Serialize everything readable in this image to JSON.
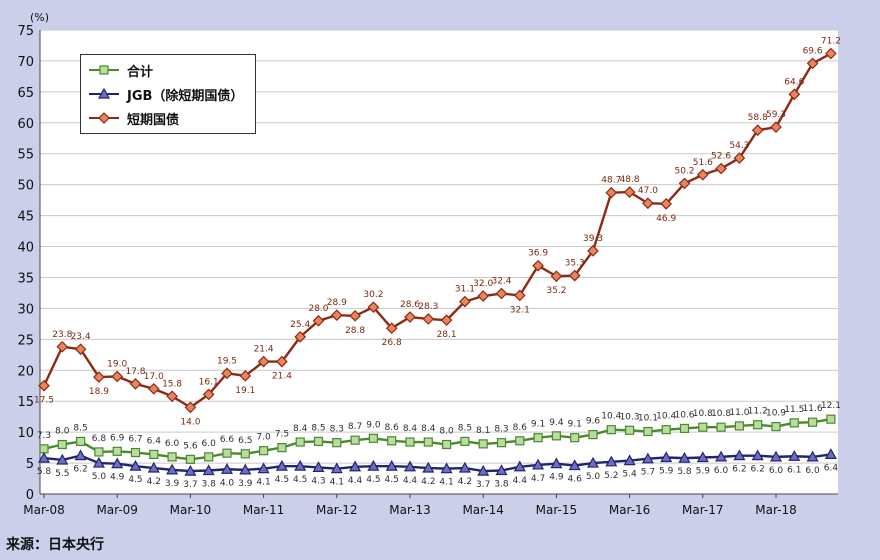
{
  "chart_data": {
    "type": "line",
    "y_unit_label": "(%)",
    "ylim": [
      0,
      75
    ],
    "y_ticks": [
      0,
      5,
      10,
      15,
      20,
      25,
      30,
      35,
      40,
      45,
      50,
      55,
      60,
      65,
      70,
      75
    ],
    "x_tick_labels": [
      "Mar-08",
      "Mar-09",
      "Mar-10",
      "Mar-11",
      "Mar-12",
      "Mar-13",
      "Mar-14",
      "Mar-15",
      "Mar-16",
      "Mar-17",
      "Mar-18"
    ],
    "points_per_year": 4,
    "legend_position": "top-left",
    "series": [
      {
        "name": "合计",
        "color": "#4a8a2a",
        "marker_fill": "#b9dca0",
        "marker": "square",
        "values": [
          7.3,
          8.0,
          8.5,
          6.8,
          6.9,
          6.7,
          6.4,
          6.0,
          5.6,
          6.0,
          6.6,
          6.5,
          7.0,
          7.5,
          8.4,
          8.5,
          8.3,
          8.7,
          9.0,
          8.6,
          8.4,
          8.4,
          8.0,
          8.5,
          8.1,
          8.3,
          8.6,
          9.1,
          9.4,
          9.1,
          9.6,
          10.4,
          10.3,
          10.1,
          10.4,
          10.6,
          10.8,
          10.8,
          11.0,
          11.2,
          10.9,
          11.5,
          11.6,
          12.1
        ]
      },
      {
        "name": "JGB（除短期国债）",
        "color": "#24246e",
        "marker_fill": "#6a6fc4",
        "marker": "triangle",
        "values": [
          5.8,
          5.5,
          6.2,
          5.0,
          4.9,
          4.5,
          4.2,
          3.9,
          3.7,
          3.8,
          4.0,
          3.9,
          4.1,
          4.5,
          4.5,
          4.3,
          4.1,
          4.4,
          4.5,
          4.5,
          4.4,
          4.2,
          4.1,
          4.2,
          3.7,
          3.8,
          4.4,
          4.7,
          4.9,
          4.6,
          5.0,
          5.2,
          5.4,
          5.7,
          5.9,
          5.8,
          5.9,
          6.0,
          6.2,
          6.2,
          6.0,
          6.1,
          6.0,
          6.4
        ]
      },
      {
        "name": "短期国债",
        "color": "#8c2a14",
        "marker_fill": "#e8845e",
        "marker": "diamond",
        "values": [
          17.5,
          23.8,
          23.4,
          18.9,
          19.0,
          17.8,
          17.0,
          15.8,
          14.0,
          16.1,
          19.5,
          19.1,
          21.4,
          21.4,
          25.4,
          28.0,
          28.9,
          28.8,
          30.2,
          26.8,
          28.6,
          28.3,
          28.1,
          31.1,
          32.0,
          32.4,
          32.1,
          36.9,
          35.2,
          35.3,
          39.3,
          48.7,
          48.8,
          47.0,
          46.9,
          50.2,
          51.6,
          52.6,
          54.3,
          58.8,
          59.3,
          64.6,
          69.6,
          71.2
        ]
      }
    ]
  },
  "source": "来源：日本央行"
}
